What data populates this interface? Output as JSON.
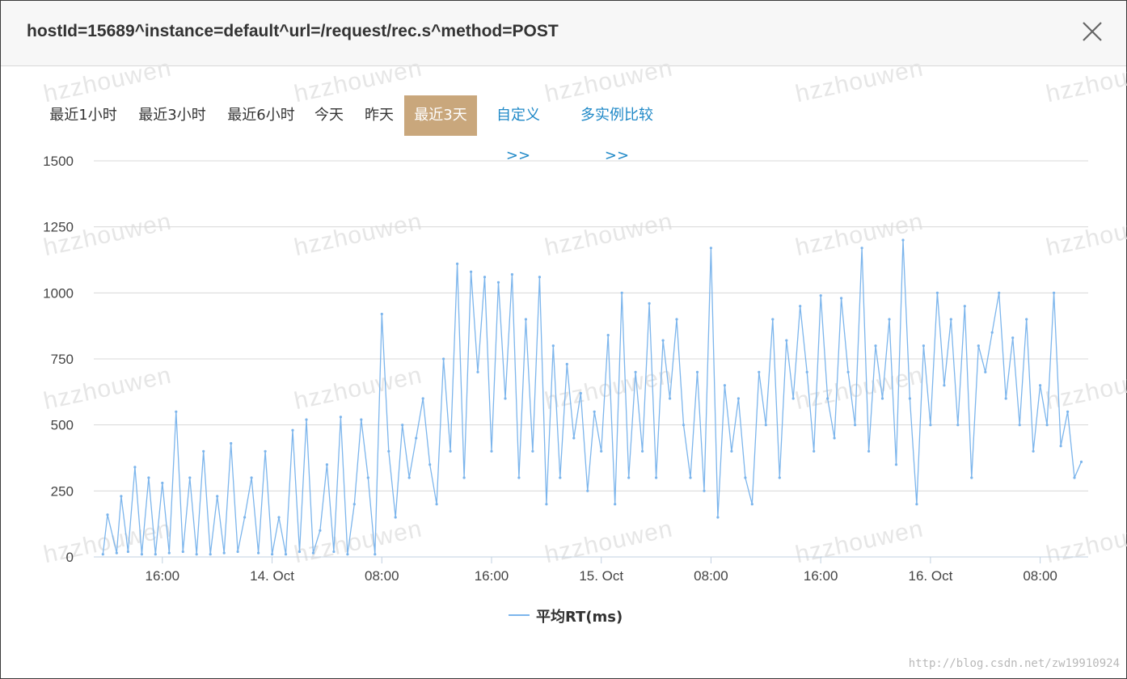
{
  "dialog": {
    "title": "hostId=15689^instance=default^url=/request/rec.s^method=POST"
  },
  "close_icon": "close-icon",
  "ranges": [
    {
      "label": "最近1小时",
      "active": false,
      "link": false
    },
    {
      "label": "最近3小时",
      "active": false,
      "link": false
    },
    {
      "label": "最近6小时",
      "active": false,
      "link": false
    },
    {
      "label": "今天",
      "active": false,
      "link": false
    },
    {
      "label": "昨天",
      "active": false,
      "link": false
    },
    {
      "label": "最近3天",
      "active": true,
      "link": false
    },
    {
      "label": "自定义>>",
      "active": false,
      "link": true
    },
    {
      "label": "多实例比较>>",
      "active": false,
      "link": true
    }
  ],
  "colors": {
    "active_bg": "#c9a77c",
    "link": "#1e88c7",
    "series": "#7cb5ec",
    "grid": "#d8d8d8"
  },
  "watermark_text": "hzzhouwen",
  "credit": "http://blog.csdn.net/zw19910924",
  "chart_data": {
    "type": "line",
    "title": "",
    "xlabel": "",
    "ylabel": "",
    "ylim": [
      0,
      1500
    ],
    "yticks": [
      0,
      250,
      500,
      750,
      1000,
      1250,
      1500
    ],
    "xlim": [
      "2017-10-13 11:00",
      "2017-10-16 11:30"
    ],
    "xticks": [
      {
        "value": "2017-10-13 16:00",
        "label": "16:00"
      },
      {
        "value": "2017-10-14 00:00",
        "label": "14. Oct"
      },
      {
        "value": "2017-10-14 08:00",
        "label": "08:00"
      },
      {
        "value": "2017-10-14 16:00",
        "label": "16:00"
      },
      {
        "value": "2017-10-15 00:00",
        "label": "15. Oct"
      },
      {
        "value": "2017-10-15 08:00",
        "label": "08:00"
      },
      {
        "value": "2017-10-15 16:00",
        "label": "16:00"
      },
      {
        "value": "2017-10-16 00:00",
        "label": "16. Oct"
      },
      {
        "value": "2017-10-16 08:00",
        "label": "08:00"
      }
    ],
    "grid": true,
    "legend_position": "bottom-center",
    "series": [
      {
        "name": "平均RT(ms)",
        "x": [
          "2017-10-13 11:40",
          "2017-10-13 12:00",
          "2017-10-13 12:40",
          "2017-10-13 13:00",
          "2017-10-13 13:30",
          "2017-10-13 14:00",
          "2017-10-13 14:30",
          "2017-10-13 15:00",
          "2017-10-13 15:30",
          "2017-10-13 16:00",
          "2017-10-13 16:30",
          "2017-10-13 17:00",
          "2017-10-13 17:30",
          "2017-10-13 18:00",
          "2017-10-13 18:30",
          "2017-10-13 19:00",
          "2017-10-13 19:30",
          "2017-10-13 20:00",
          "2017-10-13 20:30",
          "2017-10-13 21:00",
          "2017-10-13 21:30",
          "2017-10-13 22:00",
          "2017-10-13 22:30",
          "2017-10-13 23:00",
          "2017-10-13 23:30",
          "2017-10-14 00:00",
          "2017-10-14 00:30",
          "2017-10-14 01:00",
          "2017-10-14 01:30",
          "2017-10-14 02:00",
          "2017-10-14 02:30",
          "2017-10-14 03:00",
          "2017-10-14 03:30",
          "2017-10-14 04:00",
          "2017-10-14 04:30",
          "2017-10-14 05:00",
          "2017-10-14 05:30",
          "2017-10-14 06:00",
          "2017-10-14 06:30",
          "2017-10-14 07:00",
          "2017-10-14 07:30",
          "2017-10-14 08:00",
          "2017-10-14 08:30",
          "2017-10-14 09:00",
          "2017-10-14 09:30",
          "2017-10-14 10:00",
          "2017-10-14 10:30",
          "2017-10-14 11:00",
          "2017-10-14 11:30",
          "2017-10-14 12:00",
          "2017-10-14 12:30",
          "2017-10-14 13:00",
          "2017-10-14 13:30",
          "2017-10-14 14:00",
          "2017-10-14 14:30",
          "2017-10-14 15:00",
          "2017-10-14 15:30",
          "2017-10-14 16:00",
          "2017-10-14 16:30",
          "2017-10-14 17:00",
          "2017-10-14 17:30",
          "2017-10-14 18:00",
          "2017-10-14 18:30",
          "2017-10-14 19:00",
          "2017-10-14 19:30",
          "2017-10-14 20:00",
          "2017-10-14 20:30",
          "2017-10-14 21:00",
          "2017-10-14 21:30",
          "2017-10-14 22:00",
          "2017-10-14 22:30",
          "2017-10-14 23:00",
          "2017-10-14 23:30",
          "2017-10-15 00:00",
          "2017-10-15 00:30",
          "2017-10-15 01:00",
          "2017-10-15 01:30",
          "2017-10-15 02:00",
          "2017-10-15 02:30",
          "2017-10-15 03:00",
          "2017-10-15 03:30",
          "2017-10-15 04:00",
          "2017-10-15 04:30",
          "2017-10-15 05:00",
          "2017-10-15 05:30",
          "2017-10-15 06:00",
          "2017-10-15 06:30",
          "2017-10-15 07:00",
          "2017-10-15 07:30",
          "2017-10-15 08:00",
          "2017-10-15 08:30",
          "2017-10-15 09:00",
          "2017-10-15 09:30",
          "2017-10-15 10:00",
          "2017-10-15 10:30",
          "2017-10-15 11:00",
          "2017-10-15 11:30",
          "2017-10-15 12:00",
          "2017-10-15 12:30",
          "2017-10-15 13:00",
          "2017-10-15 13:30",
          "2017-10-15 14:00",
          "2017-10-15 14:30",
          "2017-10-15 15:00",
          "2017-10-15 15:30",
          "2017-10-15 16:00",
          "2017-10-15 16:30",
          "2017-10-15 17:00",
          "2017-10-15 17:30",
          "2017-10-15 18:00",
          "2017-10-15 18:30",
          "2017-10-15 19:00",
          "2017-10-15 19:30",
          "2017-10-15 20:00",
          "2017-10-15 20:30",
          "2017-10-15 21:00",
          "2017-10-15 21:30",
          "2017-10-15 22:00",
          "2017-10-15 22:30",
          "2017-10-15 23:00",
          "2017-10-15 23:30",
          "2017-10-16 00:00",
          "2017-10-16 00:30",
          "2017-10-16 01:00",
          "2017-10-16 01:30",
          "2017-10-16 02:00",
          "2017-10-16 02:30",
          "2017-10-16 03:00",
          "2017-10-16 03:30",
          "2017-10-16 04:00",
          "2017-10-16 04:30",
          "2017-10-16 05:00",
          "2017-10-16 05:30",
          "2017-10-16 06:00",
          "2017-10-16 06:30",
          "2017-10-16 07:00",
          "2017-10-16 07:30",
          "2017-10-16 08:00",
          "2017-10-16 08:30",
          "2017-10-16 09:00",
          "2017-10-16 09:30",
          "2017-10-16 10:00",
          "2017-10-16 10:30",
          "2017-10-16 11:00"
        ],
        "y": [
          10,
          160,
          15,
          230,
          20,
          340,
          10,
          300,
          10,
          280,
          15,
          550,
          20,
          300,
          10,
          400,
          10,
          230,
          15,
          430,
          20,
          150,
          300,
          15,
          400,
          10,
          150,
          10,
          480,
          20,
          520,
          15,
          100,
          350,
          20,
          530,
          10,
          200,
          520,
          300,
          10,
          920,
          400,
          150,
          500,
          300,
          450,
          600,
          350,
          200,
          750,
          400,
          1110,
          300,
          1080,
          700,
          1060,
          400,
          1040,
          600,
          1070,
          300,
          900,
          400,
          1060,
          200,
          800,
          300,
          730,
          450,
          620,
          250,
          550,
          400,
          840,
          200,
          1000,
          300,
          700,
          400,
          960,
          300,
          820,
          600,
          900,
          500,
          300,
          700,
          250,
          1170,
          150,
          650,
          400,
          600,
          300,
          200,
          700,
          500,
          900,
          300,
          820,
          600,
          950,
          700,
          400,
          990,
          600,
          450,
          980,
          700,
          500,
          1170,
          400,
          800,
          600,
          900,
          350,
          1200,
          600,
          200,
          800,
          500,
          1000,
          650,
          900,
          500,
          950,
          300,
          800,
          700,
          850,
          1000,
          600,
          830,
          500,
          900,
          400,
          650,
          500,
          1000,
          420,
          550,
          300,
          360
        ]
      }
    ]
  }
}
